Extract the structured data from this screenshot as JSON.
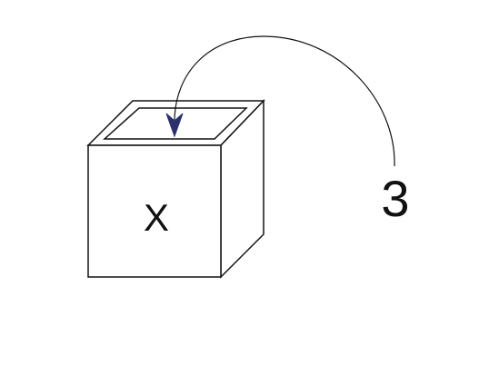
{
  "box": {
    "label": "X"
  },
  "arrow": {
    "label": "3"
  },
  "colors": {
    "line": "#111111",
    "arrowhead": "#2b2f6b",
    "background": "#ffffff"
  }
}
